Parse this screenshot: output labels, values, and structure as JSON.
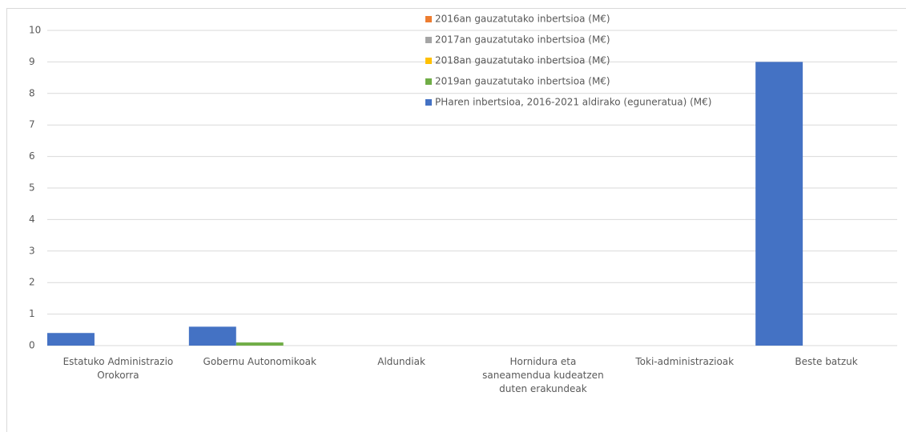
{
  "chart_data": {
    "type": "bar",
    "categories": [
      "Estatuko Administrazio Orokorra",
      "Gobernu Autonomikoak",
      "Aldundiak",
      "Hornidura eta saneamendua kudeatzen duten erakundeak",
      "Toki-administrazioak",
      "Beste batzuk"
    ],
    "series": [
      {
        "name": "2016an gauzatutako inbertsioa (M€)",
        "color": "#ed7d31",
        "values": [
          0,
          0,
          0,
          0,
          0,
          0
        ]
      },
      {
        "name": "2017an gauzatutako inbertsioa (M€)",
        "color": "#a5a5a5",
        "values": [
          0,
          0,
          0,
          0,
          0,
          0
        ]
      },
      {
        "name": "2018an gauzatutako inbertsioa (M€)",
        "color": "#ffc000",
        "values": [
          0,
          0,
          0,
          0,
          0,
          0
        ]
      },
      {
        "name": "2019an gauzatutako inbertsioa (M€)",
        "color": "#70ad47",
        "values": [
          0,
          0.1,
          0,
          0,
          0,
          0
        ]
      },
      {
        "name": "PHaren inbertsioa, 2016-2021 aldirako (eguneratua) (M€)",
        "color": "#4472c4",
        "values": [
          0.4,
          0.6,
          0,
          0,
          0,
          9
        ]
      }
    ],
    "ylim": [
      0,
      10
    ],
    "yticks": [
      0,
      1,
      2,
      3,
      4,
      5,
      6,
      7,
      8,
      9,
      10
    ],
    "grid": true,
    "legend": "top"
  }
}
